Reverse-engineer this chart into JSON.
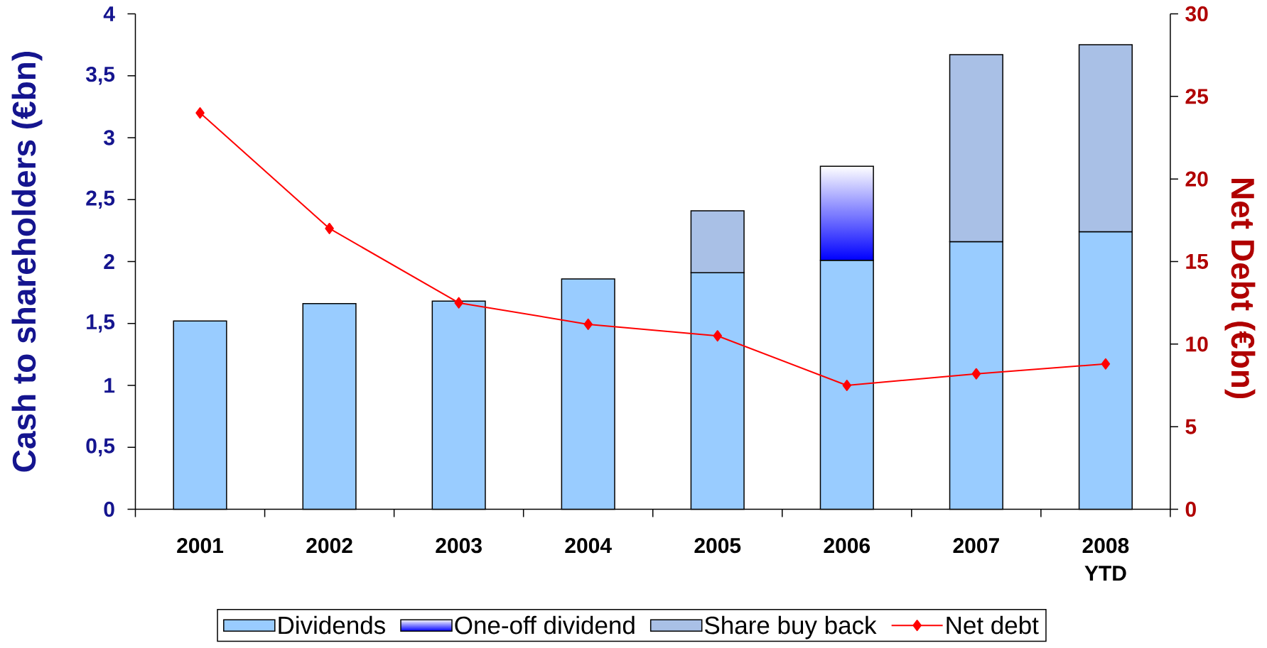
{
  "chart_data": {
    "type": "bar",
    "stacked": true,
    "categories": [
      "2001",
      "2002",
      "2003",
      "2004",
      "2005",
      "2006",
      "2007",
      "2008 YTD"
    ],
    "series": [
      {
        "name": "Dividends",
        "color": "#99ccff",
        "values": [
          1.52,
          1.66,
          1.68,
          1.86,
          1.91,
          2.01,
          2.16,
          2.24
        ]
      },
      {
        "name": "One-off dividend",
        "color": "#0000ff",
        "values": [
          null,
          null,
          null,
          null,
          null,
          0.76,
          null,
          null
        ]
      },
      {
        "name": "Share buy back",
        "color": "#a9c0e6",
        "values": [
          null,
          null,
          null,
          null,
          0.5,
          null,
          1.51,
          1.51
        ]
      },
      {
        "name": "Net debt",
        "type": "line",
        "axis": "y2",
        "color": "#ff0000",
        "values": [
          24.0,
          17.0,
          12.5,
          11.2,
          10.5,
          7.5,
          8.2,
          8.8
        ]
      }
    ],
    "ylabel": "Cash to shareholders (€bn)",
    "y2label": "Net Debt (€bn)",
    "ylim": [
      0,
      4
    ],
    "yticks": [
      0,
      {
        "value": 0.5,
        "label": "0,5"
      },
      1,
      {
        "value": 1.5,
        "label": "1,5"
      },
      2,
      {
        "value": 2.5,
        "label": "2,5"
      },
      3,
      {
        "value": 3.5,
        "label": "3,5"
      },
      4
    ],
    "y2lim": [
      0,
      30
    ],
    "y2ticks": [
      0,
      5,
      10,
      15,
      20,
      25,
      30
    ],
    "legend": "bottom",
    "marker": "diamond"
  }
}
